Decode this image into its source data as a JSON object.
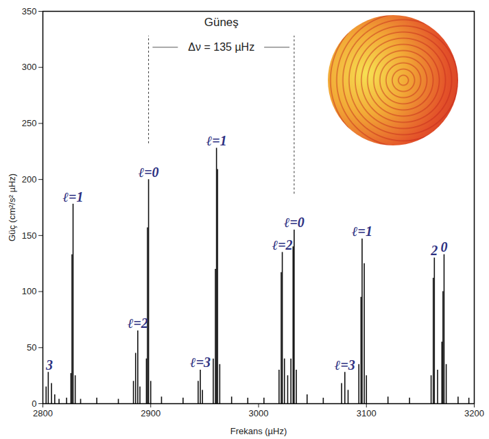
{
  "chart_data": {
    "type": "stem",
    "title": "Güneş",
    "x_label": "Frekans (µHz)",
    "y_label": "Güç (cm²/s² µHz)",
    "color": "#111111",
    "x": [
      2803,
      2805,
      2808,
      2811,
      2815,
      2822,
      2826,
      2827,
      2828,
      2830,
      2835,
      2850,
      2870,
      2884,
      2886,
      2888,
      2890,
      2896,
      2897,
      2898,
      2900,
      2910,
      2930,
      2944,
      2946,
      2948,
      2958,
      2960,
      2961,
      2962,
      2964,
      2975,
      2990,
      3005,
      3019,
      3021,
      3022,
      3024,
      3027,
      3030,
      3032,
      3033,
      3035,
      3045,
      3060,
      3077,
      3080,
      3083,
      3093,
      3095,
      3096,
      3098,
      3100,
      3120,
      3140,
      3160,
      3162,
      3163,
      3166,
      3170,
      3171,
      3172,
      3174,
      3185,
      3195
    ],
    "values": [
      15,
      28,
      18,
      8,
      4,
      5,
      27,
      133,
      178,
      25,
      4,
      5,
      4,
      20,
      45,
      65,
      15,
      40,
      157,
      200,
      20,
      6,
      5,
      20,
      30,
      12,
      40,
      120,
      228,
      209,
      35,
      6,
      5,
      5,
      30,
      117,
      135,
      40,
      25,
      40,
      140,
      155,
      30,
      8,
      5,
      18,
      28,
      12,
      35,
      95,
      147,
      125,
      25,
      6,
      5,
      25,
      112,
      130,
      30,
      55,
      100,
      133,
      35,
      6,
      5
    ],
    "xlim": [
      2800,
      3200
    ],
    "xticks": [
      2800,
      2900,
      3000,
      3100,
      3200
    ],
    "ylim": [
      0,
      350
    ],
    "yticks": [
      0,
      50,
      100,
      150,
      200,
      250,
      300,
      350
    ],
    "annotations": [
      {
        "x": 2806,
        "text": "3"
      },
      {
        "x": 2828,
        "text": "ℓ=1"
      },
      {
        "x": 2888,
        "text": "ℓ=2"
      },
      {
        "x": 2898,
        "text": "ℓ=0"
      },
      {
        "x": 2946,
        "text": "ℓ=3"
      },
      {
        "x": 2961,
        "text": "ℓ=1"
      },
      {
        "x": 3022,
        "text": "ℓ=2"
      },
      {
        "x": 3033,
        "text": "ℓ=0"
      },
      {
        "x": 3080,
        "text": "ℓ=3"
      },
      {
        "x": 3096,
        "text": "ℓ=1"
      },
      {
        "x": 3163,
        "text": "2"
      },
      {
        "x": 3172,
        "text": "0"
      }
    ],
    "spacing": {
      "text": "Δν = 135 µHz",
      "from": 2898,
      "to": 3033
    }
  }
}
